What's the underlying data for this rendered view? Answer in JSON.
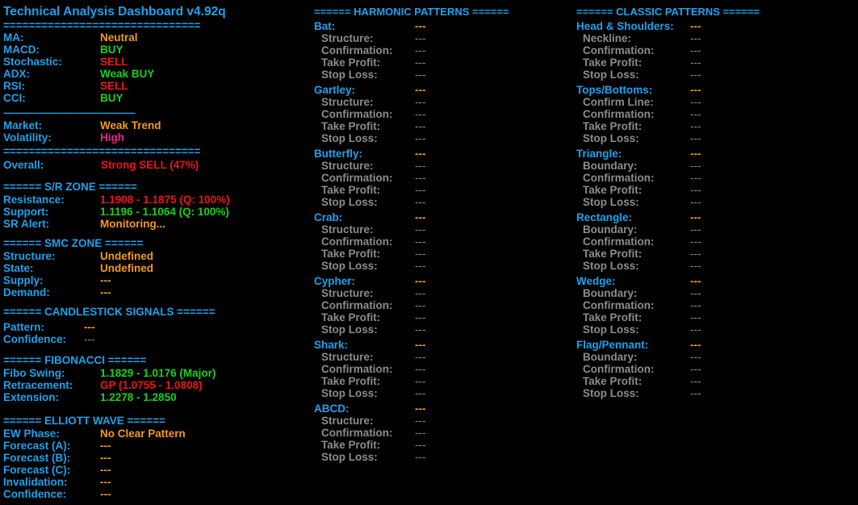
{
  "title": "Technical Analysis Dashboard v4.92q",
  "sep_eq": "===============================",
  "sep_dash": "-----------------------------------------------------------",
  "indicators": [
    {
      "label": "MA:",
      "value": "Neutral",
      "color": "orange"
    },
    {
      "label": "MACD:",
      "value": "BUY",
      "color": "green"
    },
    {
      "label": "Stochastic:",
      "value": "SELL",
      "color": "red"
    },
    {
      "label": "ADX:",
      "value": "Weak BUY",
      "color": "green"
    },
    {
      "label": "RSI:",
      "value": "SELL",
      "color": "red"
    },
    {
      "label": "CCI:",
      "value": "BUY",
      "color": "green"
    }
  ],
  "market": {
    "label": "Market:",
    "value": "Weak Trend"
  },
  "volatility": {
    "label": "Volatility:",
    "value": "High"
  },
  "overall": {
    "label": "Overall:",
    "value": "Strong SELL (47%)"
  },
  "sr_zone": {
    "header": "====== S/R ZONE ======",
    "resistance": {
      "label": "Resistance:",
      "value": "1.1908 - 1.1875 (Q: 100%)"
    },
    "support": {
      "label": "Support:",
      "value": "1.1196 - 1.1064 (Q: 100%)"
    },
    "alert": {
      "label": "SR Alert:",
      "value": "Monitoring..."
    }
  },
  "smc_zone": {
    "header": "====== SMC ZONE ======",
    "structure": {
      "label": "Structure:",
      "value": "Undefined"
    },
    "state": {
      "label": "State:",
      "value": "Undefined"
    },
    "supply": {
      "label": "Supply:",
      "value": "---"
    },
    "demand": {
      "label": "Demand:",
      "value": "---"
    }
  },
  "candlestick": {
    "header": "====== CANDLESTICK SIGNALS ======",
    "pattern": {
      "label": "Pattern:",
      "value": "---"
    },
    "confidence": {
      "label": "Confidence:",
      "value": "---"
    }
  },
  "fibonacci": {
    "header": "====== FIBONACCI ======",
    "swing": {
      "label": "Fibo Swing:",
      "value": "1.1829 - 1.0176 (Major)"
    },
    "retracement": {
      "label": "Retracement:",
      "value": "GP (1.0755 - 1.0808)"
    },
    "extension": {
      "label": "Extension:",
      "value": "1.2278 - 1.2850"
    }
  },
  "elliott": {
    "header": "====== ELLIOTT WAVE ======",
    "phase": {
      "label": "EW Phase:",
      "value": "No Clear Pattern"
    },
    "forecast_a": {
      "label": "Forecast (A):",
      "value": "---"
    },
    "forecast_b": {
      "label": "Forecast (B):",
      "value": "---"
    },
    "forecast_c": {
      "label": "Forecast (C):",
      "value": "---"
    },
    "invalidation": {
      "label": "Invalidation:",
      "value": "---"
    },
    "confidence": {
      "label": "Confidence:",
      "value": "---"
    }
  },
  "harmonic": {
    "header": "====== HARMONIC PATTERNS ======",
    "patterns": [
      {
        "name": "Bat:",
        "value": "---",
        "rows": [
          [
            "Structure:",
            "---"
          ],
          [
            "Confirmation:",
            "---"
          ],
          [
            "Take Profit:",
            "---"
          ],
          [
            "Stop Loss:",
            "---"
          ]
        ]
      },
      {
        "name": "Gartley:",
        "value": "---",
        "rows": [
          [
            "Structure:",
            "---"
          ],
          [
            "Confirmation:",
            "---"
          ],
          [
            "Take Profit:",
            "---"
          ],
          [
            "Stop Loss:",
            "---"
          ]
        ]
      },
      {
        "name": "Butterfly:",
        "value": "---",
        "rows": [
          [
            "Structure:",
            "---"
          ],
          [
            "Confirmation:",
            "---"
          ],
          [
            "Take Profit:",
            "---"
          ],
          [
            "Stop Loss:",
            "---"
          ]
        ]
      },
      {
        "name": "Crab:",
        "value": "---",
        "rows": [
          [
            "Structure:",
            "---"
          ],
          [
            "Confirmation:",
            "---"
          ],
          [
            "Take Profit:",
            "---"
          ],
          [
            "Stop Loss:",
            "---"
          ]
        ]
      },
      {
        "name": "Cypher:",
        "value": "---",
        "rows": [
          [
            "Structure:",
            "---"
          ],
          [
            "Confirmation:",
            "---"
          ],
          [
            "Take Profit:",
            "---"
          ],
          [
            "Stop Loss:",
            "---"
          ]
        ]
      },
      {
        "name": "Shark:",
        "value": "---",
        "rows": [
          [
            "Structure:",
            "---"
          ],
          [
            "Confirmation:",
            "---"
          ],
          [
            "Take Profit:",
            "---"
          ],
          [
            "Stop Loss:",
            "---"
          ]
        ]
      },
      {
        "name": "ABCD:",
        "value": "---",
        "rows": [
          [
            "Structure:",
            "---"
          ],
          [
            "Confirmation:",
            "---"
          ],
          [
            "Take Profit:",
            "---"
          ],
          [
            "Stop Loss:",
            "---"
          ]
        ]
      }
    ]
  },
  "classic": {
    "header": "====== CLASSIC PATTERNS ======",
    "patterns": [
      {
        "name": "Head & Shoulders:",
        "value": "---",
        "rows": [
          [
            "Neckline:",
            "---"
          ],
          [
            "Confirmation:",
            "---"
          ],
          [
            "Take Profit:",
            "---"
          ],
          [
            "Stop Loss:",
            "---"
          ]
        ]
      },
      {
        "name": "Tops/Bottoms:",
        "value": "---",
        "rows": [
          [
            "Confirm Line:",
            "---"
          ],
          [
            "Confirmation:",
            "---"
          ],
          [
            "Take Profit:",
            "---"
          ],
          [
            "Stop Loss:",
            "---"
          ]
        ]
      },
      {
        "name": "Triangle:",
        "value": "---",
        "rows": [
          [
            "Boundary:",
            "---"
          ],
          [
            "Confirmation:",
            "---"
          ],
          [
            "Take Profit:",
            "---"
          ],
          [
            "Stop Loss:",
            "---"
          ]
        ]
      },
      {
        "name": "Rectangle:",
        "value": "---",
        "rows": [
          [
            "Boundary:",
            "---"
          ],
          [
            "Confirmation:",
            "---"
          ],
          [
            "Take Profit:",
            "---"
          ],
          [
            "Stop Loss:",
            "---"
          ]
        ]
      },
      {
        "name": "Wedge:",
        "value": "---",
        "rows": [
          [
            "Boundary:",
            "---"
          ],
          [
            "Confirmation:",
            "---"
          ],
          [
            "Take Profit:",
            "---"
          ],
          [
            "Stop Loss:",
            "---"
          ]
        ]
      },
      {
        "name": "Flag/Pennant:",
        "value": "---",
        "rows": [
          [
            "Boundary:",
            "---"
          ],
          [
            "Confirmation:",
            "---"
          ],
          [
            "Take Profit:",
            "---"
          ],
          [
            "Stop Loss:",
            "---"
          ]
        ]
      }
    ]
  }
}
